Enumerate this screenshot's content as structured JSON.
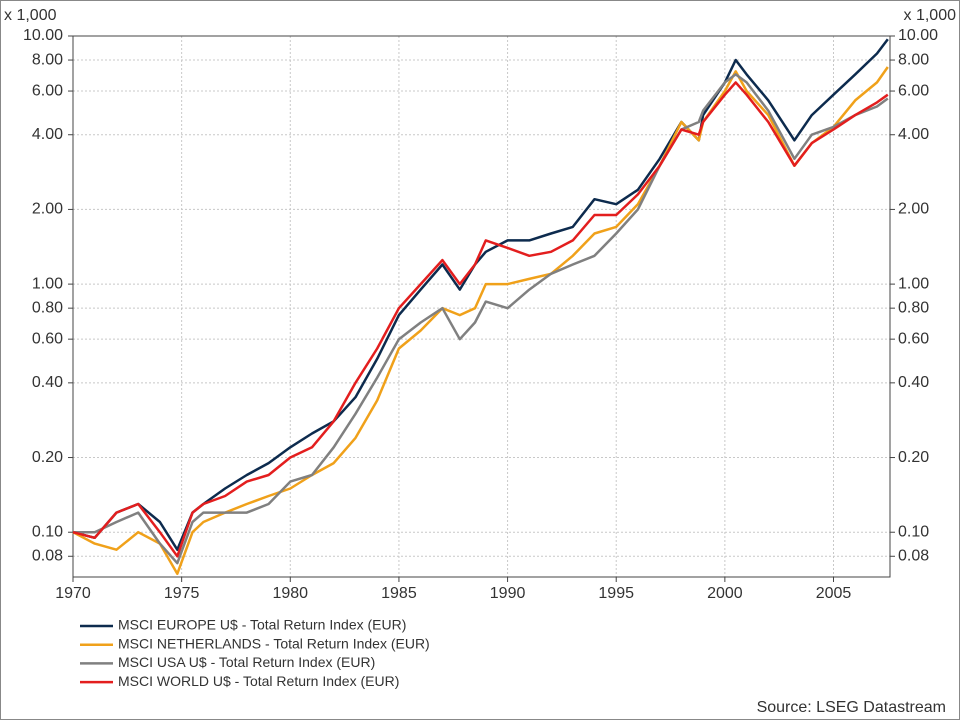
{
  "chart_data": {
    "type": "line",
    "y_unit_label": "x 1,000",
    "source": "Source: LSEG Datastream",
    "log_y": true,
    "grid": true,
    "legend": "below",
    "mirror_y_axis": true,
    "xlim": [
      1970,
      2007.6
    ],
    "xticks": [
      1970,
      1975,
      1980,
      1985,
      1990,
      1995,
      2000,
      2005
    ],
    "ylim": [
      0.066,
      10
    ],
    "yticks": [
      {
        "value": 0.08,
        "label": "0.08"
      },
      {
        "value": 0.1,
        "label": "0.10"
      },
      {
        "value": 0.2,
        "label": "0.20"
      },
      {
        "value": 0.4,
        "label": "0.40"
      },
      {
        "value": 0.6,
        "label": "0.60"
      },
      {
        "value": 0.8,
        "label": "0.80"
      },
      {
        "value": 1,
        "label": "1.00"
      },
      {
        "value": 2,
        "label": "2.00"
      },
      {
        "value": 4,
        "label": "4.00"
      },
      {
        "value": 6,
        "label": "6.00"
      },
      {
        "value": 8,
        "label": "8.00"
      },
      {
        "value": 10,
        "label": "10.00"
      }
    ],
    "x": [
      1970,
      1971,
      1972,
      1973,
      1974,
      1974.8,
      1975.5,
      1976,
      1977,
      1978,
      1979,
      1980,
      1981,
      1982,
      1983,
      1984,
      1985,
      1986,
      1987,
      1987.8,
      1988.5,
      1989,
      1990,
      1991,
      1992,
      1993,
      1994,
      1995,
      1996,
      1997,
      1998,
      1998.8,
      1999,
      2000,
      2000.5,
      2001,
      2002,
      2003.2,
      2004,
      2005,
      2006,
      2007,
      2007.5
    ],
    "series": [
      {
        "name": "MSCI EUROPE U$ - Total Return Index (EUR)",
        "color": "#0d2b4e",
        "values": [
          0.1,
          0.095,
          0.12,
          0.13,
          0.11,
          0.085,
          0.12,
          0.13,
          0.15,
          0.17,
          0.19,
          0.22,
          0.25,
          0.28,
          0.35,
          0.5,
          0.75,
          0.95,
          1.2,
          0.95,
          1.2,
          1.35,
          1.5,
          1.5,
          1.6,
          1.7,
          2.2,
          2.1,
          2.4,
          3.2,
          4.5,
          3.8,
          4.8,
          6.5,
          8.0,
          7.0,
          5.5,
          3.8,
          4.8,
          5.8,
          7.0,
          8.5,
          9.7
        ]
      },
      {
        "name": "MSCI NETHERLANDS - Total Return Index (EUR)",
        "color": "#f0a11a",
        "values": [
          0.1,
          0.09,
          0.085,
          0.1,
          0.09,
          0.068,
          0.1,
          0.11,
          0.12,
          0.13,
          0.14,
          0.15,
          0.17,
          0.19,
          0.24,
          0.34,
          0.55,
          0.65,
          0.8,
          0.75,
          0.8,
          1.0,
          1.0,
          1.05,
          1.1,
          1.3,
          1.6,
          1.7,
          2.1,
          3.0,
          4.5,
          3.8,
          4.5,
          6.0,
          7.2,
          6.0,
          4.8,
          3.0,
          3.7,
          4.3,
          5.5,
          6.5,
          7.5
        ]
      },
      {
        "name": "MSCI USA U$ - Total Return Index (EUR)",
        "color": "#808080",
        "values": [
          0.1,
          0.1,
          0.11,
          0.12,
          0.09,
          0.075,
          0.11,
          0.12,
          0.12,
          0.12,
          0.13,
          0.16,
          0.17,
          0.22,
          0.3,
          0.42,
          0.6,
          0.7,
          0.8,
          0.6,
          0.7,
          0.85,
          0.8,
          0.95,
          1.1,
          1.2,
          1.3,
          1.6,
          2.0,
          3.0,
          4.2,
          4.5,
          5.0,
          6.5,
          7.0,
          6.5,
          5.0,
          3.2,
          4.0,
          4.3,
          4.8,
          5.2,
          5.6
        ]
      },
      {
        "name": "MSCI WORLD U$ - Total Return Index (EUR)",
        "color": "#e31e1e",
        "values": [
          0.1,
          0.095,
          0.12,
          0.13,
          0.1,
          0.08,
          0.12,
          0.13,
          0.14,
          0.16,
          0.17,
          0.2,
          0.22,
          0.28,
          0.4,
          0.55,
          0.8,
          1.0,
          1.25,
          1.0,
          1.2,
          1.5,
          1.4,
          1.3,
          1.35,
          1.5,
          1.9,
          1.9,
          2.3,
          3.0,
          4.2,
          4.0,
          4.5,
          5.8,
          6.5,
          5.8,
          4.5,
          3.0,
          3.7,
          4.2,
          4.8,
          5.4,
          5.8
        ]
      }
    ]
  }
}
